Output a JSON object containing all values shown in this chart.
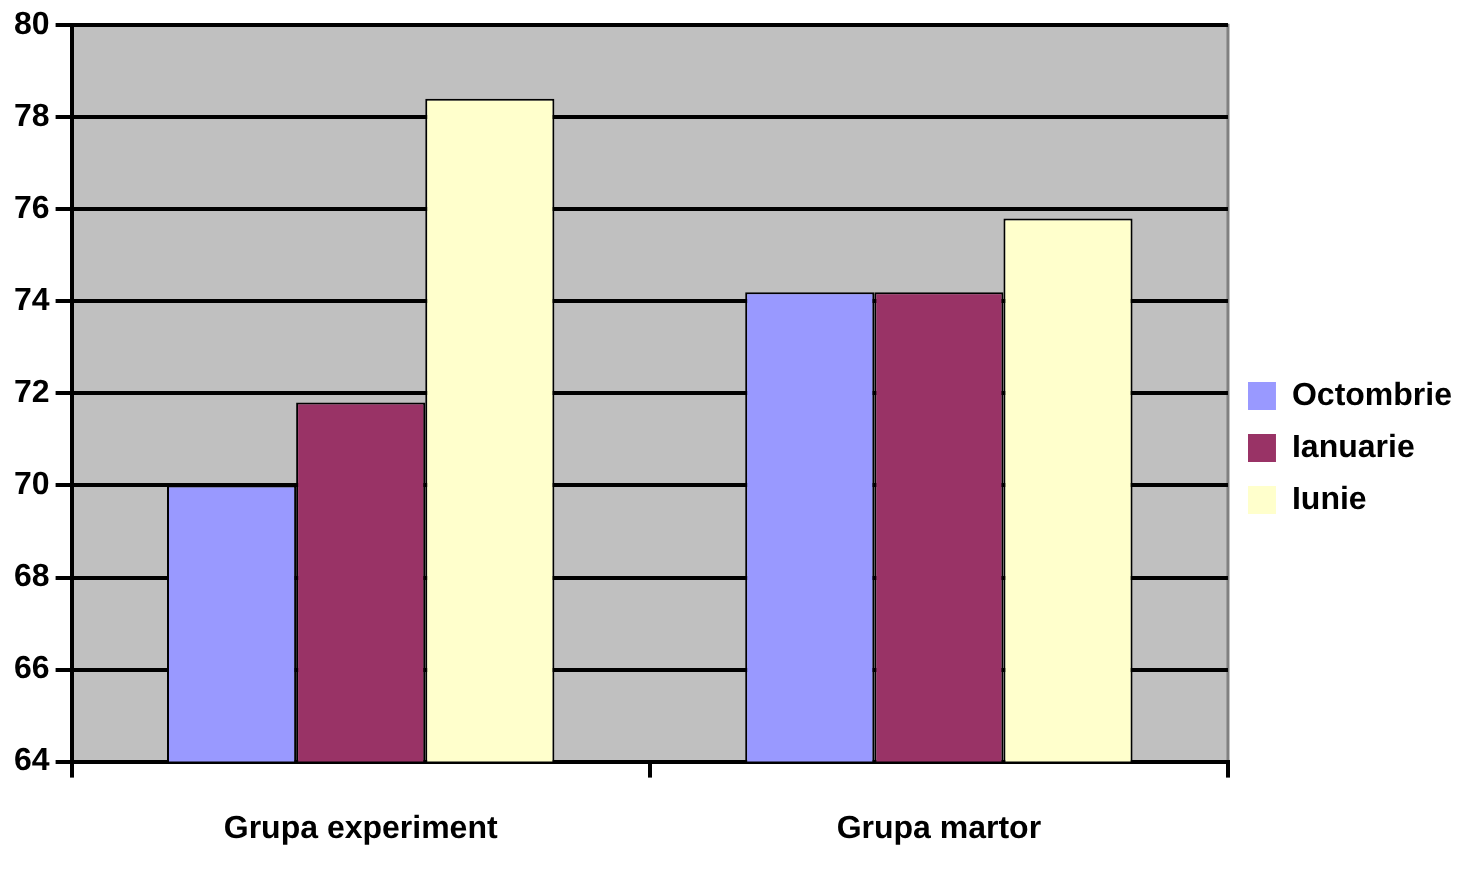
{
  "chart_data": {
    "type": "bar",
    "categories": [
      "Grupa experiment",
      "Grupa martor"
    ],
    "series": [
      {
        "name": "Octombrie",
        "color": "#9999ff",
        "values": [
          70.0,
          74.2
        ]
      },
      {
        "name": "Ianuarie",
        "color": "#993366",
        "values": [
          71.8,
          74.2
        ]
      },
      {
        "name": "Iunie",
        "color": "#ffffcc",
        "values": [
          78.4,
          75.8
        ]
      }
    ],
    "ylim": [
      64,
      80
    ],
    "yticks": [
      64,
      66,
      68,
      70,
      72,
      74,
      76,
      78,
      80
    ],
    "grid": "y",
    "legend": "right"
  }
}
